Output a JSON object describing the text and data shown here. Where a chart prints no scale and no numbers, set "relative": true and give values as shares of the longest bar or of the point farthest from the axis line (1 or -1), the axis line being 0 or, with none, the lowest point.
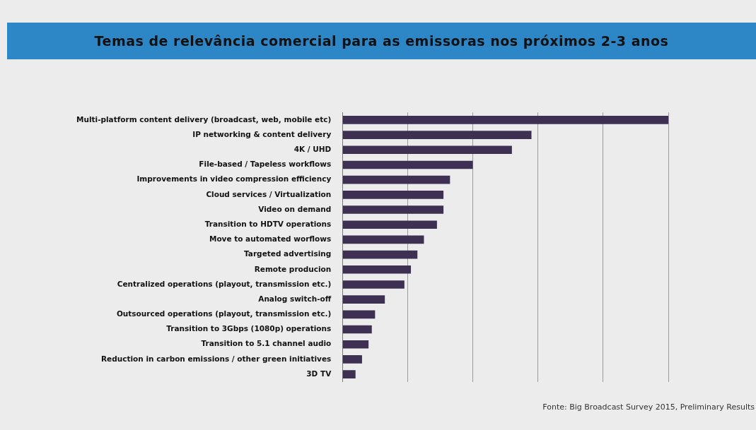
{
  "chart_data": {
    "type": "bar",
    "orientation": "horizontal",
    "relative": true,
    "title": "Temas de relevância comercial para as emissoras nos próximos 2-3 anos",
    "categories": [
      "Multi-platform content delivery (broadcast, web, mobile etc)",
      "IP networking & content delivery",
      "4K / UHD",
      "File-based / Tapeless workflows",
      "Improvements in video compression efficiency",
      "Cloud services / Virtualization",
      "Video on demand",
      "Transition to HDTV operations",
      "Move to automated worflows",
      "Targeted advertising",
      "Remote producion",
      "Centralized operations (playout, transmission etc.)",
      "Analog switch-off",
      "Outsourced operations (playout, transmission etc.)",
      "Transition to 3Gbps (1080p) operations",
      "Transition to 5.1 channel audio",
      "Reduction in carbon emissions / other green initiatives",
      "3D TV"
    ],
    "values": [
      1,
      0.58,
      0.52,
      0.4,
      0.33,
      0.31,
      0.31,
      0.29,
      0.25,
      0.23,
      0.21,
      0.19,
      0.13,
      0.1,
      0.09,
      0.08,
      0.06,
      0.04
    ],
    "color": "#3e3052",
    "grid": "x",
    "annotations": [
      "Fonte: Big Broadcast Survey 2015, Preliminary Results"
    ]
  }
}
